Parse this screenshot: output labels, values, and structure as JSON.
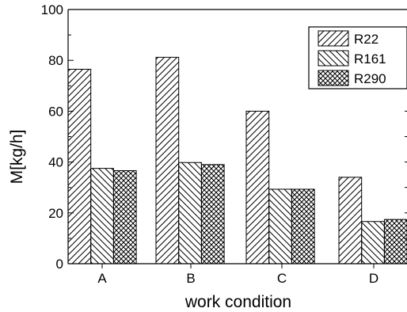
{
  "chart_data": {
    "type": "bar",
    "xlabel": "work condition",
    "ylabel": "M[kg/h]",
    "categories": [
      "A",
      "B",
      "C",
      "D"
    ],
    "ylim": [
      0,
      100
    ],
    "yticks": [
      0,
      20,
      40,
      60,
      80,
      100
    ],
    "grid": false,
    "legend_position": "top-right",
    "series": [
      {
        "name": "R22",
        "values": [
          76.5,
          81.2,
          60.0,
          34.0
        ],
        "pattern": "diagonal-forward"
      },
      {
        "name": "R161",
        "values": [
          37.5,
          39.8,
          29.3,
          16.6
        ],
        "pattern": "diagonal-backward"
      },
      {
        "name": "R290",
        "values": [
          36.6,
          39.0,
          29.3,
          17.4
        ],
        "pattern": "crosshatch"
      }
    ]
  }
}
